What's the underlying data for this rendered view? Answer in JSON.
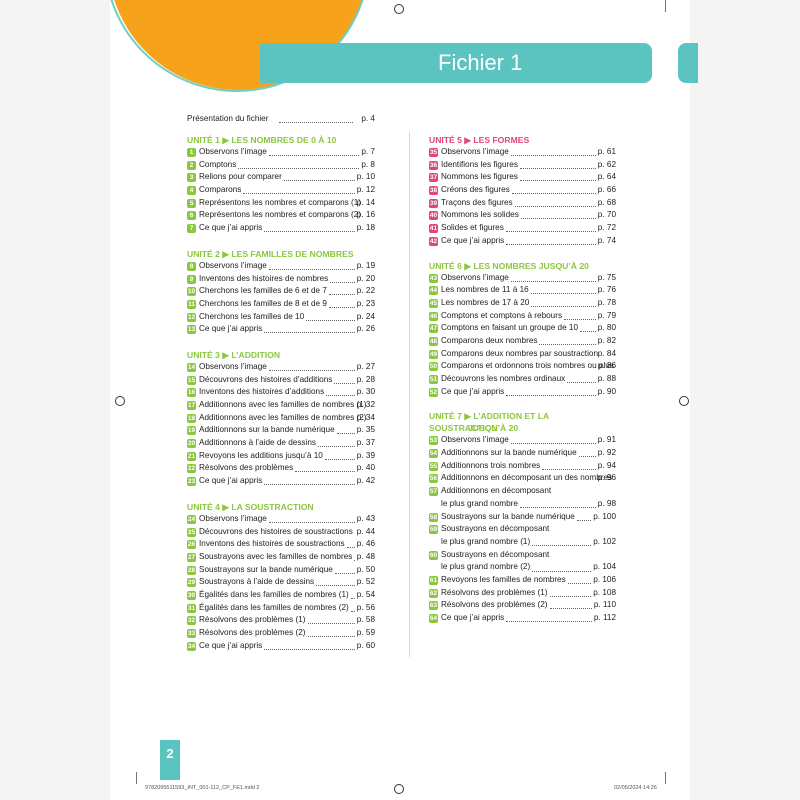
{
  "header": {
    "title": "Fichier 1"
  },
  "presentation": {
    "label": "Présentation du fichier",
    "page": "p. 4"
  },
  "units": [
    {
      "title": "UNITÉ 1 ▶ LES NOMBRES DE 0 À 10",
      "color": "#8cc63f",
      "column": "left",
      "lessons": [
        {
          "n": "1",
          "label": "Observons l’image",
          "page": "p. 7",
          "bold": true
        },
        {
          "n": "2",
          "label": "Comptons",
          "page": "p. 8",
          "bold": true
        },
        {
          "n": "3",
          "label": "Relions pour comparer",
          "page": "p. 10",
          "bold": false
        },
        {
          "n": "4",
          "label": "Comparons",
          "page": "p. 12",
          "bold": true
        },
        {
          "n": "5",
          "label": "Représentons les nombres et comparons (1)",
          "page": "p. 14",
          "bold": true
        },
        {
          "n": "6",
          "label": "Représentons les nombres et comparons (2)",
          "page": "p. 16",
          "bold": true
        },
        {
          "n": "7",
          "label": "Ce que j’ai appris",
          "page": "p. 18",
          "bold": true
        }
      ]
    },
    {
      "title": "UNITÉ 2 ▶ LES FAMILLES DE NOMBRES",
      "color": "#8cc63f",
      "column": "left",
      "lessons": [
        {
          "n": "8",
          "label": "Observons l’image",
          "page": "p. 19",
          "bold": true
        },
        {
          "n": "9",
          "label": "Inventons des histoires de nombres",
          "page": "p. 20",
          "bold": true
        },
        {
          "n": "10",
          "label": "Cherchons les familles de 6 et de 7",
          "page": "p. 22",
          "bold": true
        },
        {
          "n": "11",
          "label": "Cherchons les familles de 8 et de 9",
          "page": "p. 23",
          "bold": true
        },
        {
          "n": "12",
          "label": "Cherchons les familles de 10",
          "page": "p. 24",
          "bold": true
        },
        {
          "n": "13",
          "label": "Ce que j’ai appris",
          "page": "p. 26",
          "bold": true
        }
      ]
    },
    {
      "title": "UNITÉ 3 ▶ L’ADDITION",
      "color": "#8cc63f",
      "column": "left",
      "lessons": [
        {
          "n": "14",
          "label": "Observons l’image",
          "page": "p. 27",
          "bold": true
        },
        {
          "n": "15",
          "label": "Découvrons des histoires d’additions",
          "page": "p. 28",
          "bold": true
        },
        {
          "n": "16",
          "label": "Inventons des histoires d’additions",
          "page": "p. 30",
          "bold": true
        },
        {
          "n": "17",
          "label": "Additionnons avec les familles de nombres (1)",
          "page": "p. 32",
          "bold": true
        },
        {
          "n": "18",
          "label": "Additionnons avec les familles de nombres (2)",
          "page": "p. 34",
          "bold": true
        },
        {
          "n": "19",
          "label": "Additionnons sur la bande numérique",
          "page": "p. 35",
          "bold": true
        },
        {
          "n": "20",
          "label": "Additionnons à l’aide de dessins",
          "page": "p. 37",
          "bold": true
        },
        {
          "n": "21",
          "label": "Revoyons les additions jusqu’à 10",
          "page": "p. 39",
          "bold": true
        },
        {
          "n": "22",
          "label": "Résolvons des problèmes",
          "page": "p. 40",
          "bold": true
        },
        {
          "n": "23",
          "label": "Ce que j’ai appris",
          "page": "p. 42",
          "bold": true
        }
      ]
    },
    {
      "title": "UNITÉ 4 ▶ LA SOUSTRACTION",
      "color": "#8cc63f",
      "column": "left",
      "lessons": [
        {
          "n": "24",
          "label": "Observons l’image",
          "page": "p. 43",
          "bold": true
        },
        {
          "n": "25",
          "label": "Découvrons des histoires de soustractions",
          "page": "p. 44",
          "bold": true
        },
        {
          "n": "26",
          "label": "Inventons des histoires de soustractions",
          "page": "p. 46",
          "bold": true
        },
        {
          "n": "27",
          "label": "Soustrayons avec les familles de nombres",
          "page": "p. 48",
          "bold": true
        },
        {
          "n": "28",
          "label": "Soustrayons sur la bande numérique",
          "page": "p. 50",
          "bold": true
        },
        {
          "n": "29",
          "label": "Soustrayons à l’aide de dessins",
          "page": "p. 52",
          "bold": true
        },
        {
          "n": "30",
          "label": "Égalités dans les familles de nombres (1)",
          "page": "p. 54",
          "bold": true
        },
        {
          "n": "31",
          "label": "Égalités dans les familles de nombres (2)",
          "page": "p. 56",
          "bold": true
        },
        {
          "n": "32",
          "label": "Résolvons des problèmes (1)",
          "page": "p. 58",
          "bold": false
        },
        {
          "n": "33",
          "label": "Résolvons des problèmes (2)",
          "page": "p. 59",
          "bold": false
        },
        {
          "n": "34",
          "label": "Ce que j’ai appris",
          "page": "p. 60",
          "bold": true
        }
      ]
    },
    {
      "title": "UNITÉ 5 ▶ LES FORMES",
      "color": "#e0457b",
      "column": "right",
      "lessons": [
        {
          "n": "35",
          "label": "Observons l’image",
          "page": "p. 61",
          "bold": true
        },
        {
          "n": "36",
          "label": "Identifions les figures",
          "page": "p. 62",
          "bold": true
        },
        {
          "n": "37",
          "label": "Nommons les figures",
          "page": "p. 64",
          "bold": true
        },
        {
          "n": "38",
          "label": "Créons des figures",
          "page": "p. 66",
          "bold": true
        },
        {
          "n": "39",
          "label": "Traçons des figures",
          "page": "p. 68",
          "bold": true
        },
        {
          "n": "40",
          "label": "Nommons les solides",
          "page": "p. 70",
          "bold": true
        },
        {
          "n": "41",
          "label": "Solides et figures",
          "page": "p. 72",
          "bold": true
        },
        {
          "n": "42",
          "label": "Ce que j’ai appris",
          "page": "p. 74",
          "bold": true
        }
      ]
    },
    {
      "title": "UNITÉ 6 ▶ LES NOMBRES JUSQU’À 20",
      "color": "#8cc63f",
      "column": "right",
      "lessons": [
        {
          "n": "43",
          "label": "Observons l’image",
          "page": "p. 75",
          "bold": true
        },
        {
          "n": "44",
          "label": "Les nombres de 11 à 16",
          "page": "p. 76",
          "bold": true
        },
        {
          "n": "45",
          "label": "Les nombres de 17 à 20",
          "page": "p. 78",
          "bold": true
        },
        {
          "n": "46",
          "label": "Comptons et comptons à rebours",
          "page": "p. 79",
          "bold": true
        },
        {
          "n": "47",
          "label": "Comptons en faisant un groupe de 10",
          "page": "p. 80",
          "bold": true
        },
        {
          "n": "48",
          "label": "Comparons deux nombres",
          "page": "p. 82",
          "bold": true
        },
        {
          "n": "49",
          "label": "Comparons deux nombres par soustraction",
          "page": "p. 84",
          "bold": true
        },
        {
          "n": "50",
          "label": "Comparons et ordonnons trois nombres ou plus",
          "page": "p. 86",
          "bold": true
        },
        {
          "n": "51",
          "label": "Découvrons les nombres ordinaux",
          "page": "p. 88",
          "bold": true
        },
        {
          "n": "52",
          "label": "Ce que j’ai appris",
          "page": "p. 90",
          "bold": true
        }
      ]
    },
    {
      "title": "UNITÉ 7 ▶ L’ADDITION ET LA SOUSTRACTION",
      "title2": "JUSQU’À 20",
      "color": "#8cc63f",
      "column": "right",
      "lessons": [
        {
          "n": "53",
          "label": "Observons l’image",
          "page": "p. 91",
          "bold": true
        },
        {
          "n": "54",
          "label": "Additionnons sur la bande numérique",
          "page": "p. 92",
          "bold": true
        },
        {
          "n": "55",
          "label": "Additionnons trois nombres",
          "page": "p. 94",
          "bold": true
        },
        {
          "n": "56",
          "label": "Additionnons en décomposant un des nombres",
          "page": "p. 96",
          "bold": true
        },
        {
          "n": "57",
          "label": "Additionnons en décomposant",
          "label2": "le plus grand nombre",
          "page": "p. 98",
          "bold": true
        },
        {
          "n": "58",
          "label": "Soustrayons sur la bande numérique",
          "page": "p. 100",
          "bold": true
        },
        {
          "n": "59",
          "label": "Soustrayons en décomposant",
          "label2": "le plus grand nombre (1)",
          "page": "p. 102",
          "bold": true
        },
        {
          "n": "60",
          "label": "Soustrayons en décomposant",
          "label2": "le plus grand nombre (2)",
          "page": "p. 104",
          "bold": true
        },
        {
          "n": "61",
          "label": "Revoyons les familles de nombres",
          "page": "p. 106",
          "bold": true
        },
        {
          "n": "62",
          "label": "Résolvons des problèmes (1)",
          "page": "p. 108",
          "bold": true
        },
        {
          "n": "63",
          "label": "Résolvons des problèmes (2)",
          "page": "p. 110",
          "bold": true
        },
        {
          "n": "64",
          "label": "Ce que j’ai appris",
          "page": "p. 112",
          "bold": true
        }
      ]
    }
  ],
  "footer": {
    "page_number": "2",
    "file_info": "9782095511593_INT_001-112_CP_FE1.indd   2",
    "timestamp": "02/05/2024   14:26"
  },
  "colors": {
    "teal": "#5bc4c0",
    "orange": "#f7a21b",
    "green": "#8cc63f",
    "pink": "#e0457b"
  }
}
